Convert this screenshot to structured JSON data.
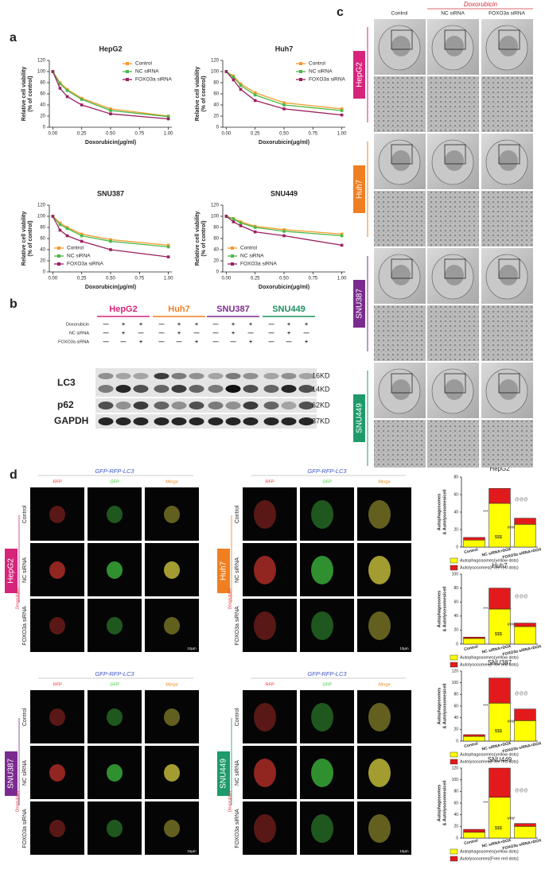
{
  "panel_labels": [
    "a",
    "b",
    "c",
    "d"
  ],
  "chart_data": [
    {
      "type": "line",
      "title": "HepG2",
      "x": [
        0,
        0.0625,
        0.125,
        0.25,
        0.5,
        1
      ],
      "xlabel": "Doxorubicin(μg/ml)",
      "ylabel": [
        "Relative cell viability",
        "(% of control)"
      ],
      "xlim": [
        -0.03,
        1.03
      ],
      "ylim": [
        0,
        120
      ],
      "xticks": [
        {
          "value": 0,
          "label": "0.00"
        },
        {
          "value": 0.25,
          "label": "0.25"
        },
        {
          "value": 0.5,
          "label": "0.50"
        },
        {
          "value": 0.75,
          "label": "0.75"
        },
        {
          "value": 1,
          "label": "1.00"
        }
      ],
      "yticks": [
        0,
        20,
        40,
        60,
        80,
        100,
        120
      ],
      "legend": "upper right",
      "series": [
        {
          "name": "Control",
          "color": "#f39c2b",
          "values": [
            100,
            80,
            68,
            52,
            33,
            20
          ]
        },
        {
          "name": "NC siRNA",
          "color": "#4cb848",
          "values": [
            100,
            78,
            66,
            50,
            30,
            19
          ]
        },
        {
          "name": "FOXO3a siRNA",
          "color": "#9b1f5f",
          "values": [
            100,
            70,
            55,
            40,
            24,
            15
          ]
        }
      ]
    },
    {
      "type": "line",
      "title": "Huh7",
      "x": [
        0,
        0.0625,
        0.125,
        0.25,
        0.5,
        1
      ],
      "xlabel": "Doxorubicin(μg/ml)",
      "ylabel": [
        "Relative cell viability",
        "(% of control)"
      ],
      "xlim": [
        -0.03,
        1.03
      ],
      "ylim": [
        0,
        120
      ],
      "xticks": [
        {
          "value": 0,
          "label": "0.00"
        },
        {
          "value": 0.25,
          "label": "0.25"
        },
        {
          "value": 0.5,
          "label": "0.50"
        },
        {
          "value": 0.75,
          "label": "0.75"
        },
        {
          "value": 1,
          "label": "1.00"
        }
      ],
      "yticks": [
        0,
        20,
        40,
        60,
        80,
        100,
        120
      ],
      "legend": "upper right",
      "series": [
        {
          "name": "Control",
          "color": "#f39c2b",
          "values": [
            100,
            92,
            78,
            62,
            44,
            33
          ]
        },
        {
          "name": "NC siRNA",
          "color": "#4cb848",
          "values": [
            100,
            90,
            75,
            58,
            40,
            30
          ]
        },
        {
          "name": "FOXO3a siRNA",
          "color": "#9b1f5f",
          "values": [
            100,
            85,
            68,
            48,
            33,
            22
          ]
        }
      ]
    },
    {
      "type": "line",
      "title": "SNU387",
      "x": [
        0,
        0.0625,
        0.125,
        0.25,
        0.5,
        1
      ],
      "xlabel": "Doxorubicin(μg/ml)",
      "ylabel": [
        "Relative cell viability",
        "(% of control)"
      ],
      "xlim": [
        -0.03,
        1.03
      ],
      "ylim": [
        0,
        120
      ],
      "xticks": [
        {
          "value": 0,
          "label": "0.00"
        },
        {
          "value": 0.25,
          "label": "0.25"
        },
        {
          "value": 0.5,
          "label": "0.50"
        },
        {
          "value": 0.75,
          "label": "0.75"
        },
        {
          "value": 1,
          "label": "1.00"
        }
      ],
      "yticks": [
        0,
        20,
        40,
        60,
        80,
        100,
        120
      ],
      "legend": "lower left",
      "series": [
        {
          "name": "Control",
          "color": "#f39c2b",
          "values": [
            100,
            88,
            80,
            68,
            58,
            48
          ]
        },
        {
          "name": "NC siRNA",
          "color": "#4cb848",
          "values": [
            100,
            85,
            78,
            65,
            55,
            45
          ]
        },
        {
          "name": "FOXO3a siRNA",
          "color": "#9b1f5f",
          "values": [
            100,
            75,
            65,
            55,
            40,
            27
          ]
        }
      ]
    },
    {
      "type": "line",
      "title": "SNU449",
      "x": [
        0,
        0.0625,
        0.125,
        0.25,
        0.5,
        1
      ],
      "xlabel": "Doxorubicin(μg/ml)",
      "ylabel": [
        "Relative cell viability",
        "(% of control)"
      ],
      "xlim": [
        -0.03,
        1.03
      ],
      "ylim": [
        0,
        120
      ],
      "xticks": [
        {
          "value": 0,
          "label": "0.00"
        },
        {
          "value": 0.25,
          "label": "0.25"
        },
        {
          "value": 0.5,
          "label": "0.50"
        },
        {
          "value": 0.75,
          "label": "0.75"
        },
        {
          "value": 1,
          "label": "1.00"
        }
      ],
      "yticks": [
        0,
        20,
        40,
        60,
        80,
        100,
        120
      ],
      "legend": "lower left",
      "series": [
        {
          "name": "Control",
          "color": "#f39c2b",
          "values": [
            100,
            96,
            90,
            82,
            76,
            68
          ]
        },
        {
          "name": "NC siRNA",
          "color": "#4cb848",
          "values": [
            100,
            95,
            88,
            80,
            73,
            65
          ]
        },
        {
          "name": "FOXO3a siRNA",
          "color": "#9b1f5f",
          "values": [
            100,
            90,
            83,
            72,
            65,
            48
          ]
        }
      ]
    },
    {
      "type": "bar",
      "stacked": true,
      "title": "HepG2",
      "categories": [
        "Control",
        "NC siRNA+DOX",
        "FOXO3a siRNA+DOX"
      ],
      "ylabel": [
        "Autophagosomes",
        "& Autolysosomes/cell"
      ],
      "ylim": [
        0,
        80
      ],
      "yticks": [
        0,
        20,
        40,
        60,
        80
      ],
      "annotations": [
        "***",
        "$$$",
        "@@@",
        "###"
      ],
      "series": [
        {
          "name": "Autophagosomes(yellow dots)",
          "color": "#ffff00",
          "values": [
            8,
            50,
            26
          ]
        },
        {
          "name": "Autolysosomes(Free red dots)",
          "color": "#e31a1c",
          "values": [
            3,
            17,
            7
          ]
        }
      ]
    },
    {
      "type": "bar",
      "stacked": true,
      "title": "Huh7",
      "categories": [
        "Control",
        "NC siRNA+DOX",
        "FOXO3a siRNA+DOX"
      ],
      "ylabel": [
        "Autophagosomes",
        "& Autolysosomes/cell"
      ],
      "ylim": [
        0,
        100
      ],
      "yticks": [
        0,
        20,
        40,
        60,
        80,
        100
      ],
      "annotations": [
        "***",
        "$$$",
        "@@@",
        "###"
      ],
      "series": [
        {
          "name": "Autophagosomes(yellow dots)",
          "color": "#ffff00",
          "values": [
            8,
            50,
            25
          ]
        },
        {
          "name": "Autolysosomes(Free red dots)",
          "color": "#e31a1c",
          "values": [
            2,
            30,
            5
          ]
        }
      ]
    },
    {
      "type": "bar",
      "stacked": true,
      "title": "SNU387",
      "categories": [
        "Control",
        "NC siRNA+DOX",
        "FOXO3a siRNA+DOX"
      ],
      "ylabel": [
        "Autophagosomes",
        "& Autolysosomes/cell"
      ],
      "ylim": [
        0,
        120
      ],
      "yticks": [
        0,
        20,
        40,
        60,
        80,
        100,
        120
      ],
      "annotations": [
        "***",
        "$$$",
        "@@@",
        "###"
      ],
      "series": [
        {
          "name": "Autophagosomes(yellow dots)",
          "color": "#ffff00",
          "values": [
            8,
            65,
            35
          ]
        },
        {
          "name": "Autolysosomes(Free red dots)",
          "color": "#e31a1c",
          "values": [
            3,
            43,
            20
          ]
        }
      ]
    },
    {
      "type": "bar",
      "stacked": true,
      "title": "SNU449",
      "categories": [
        "Control",
        "NC siRNA+DOX",
        "FOXO3a siRNA+DOX"
      ],
      "ylabel": [
        "Autophagosomes",
        "& Autolysosomes/cell"
      ],
      "ylim": [
        0,
        120
      ],
      "yticks": [
        0,
        20,
        40,
        60,
        80,
        100,
        120
      ],
      "annotations": [
        "***",
        "$$$",
        "@@@",
        "###"
      ],
      "series": [
        {
          "name": "Autophagosomes(yellow dots)",
          "color": "#ffff00",
          "values": [
            10,
            70,
            20
          ]
        },
        {
          "name": "Autolysosomes(Free red dots)",
          "color": "#e31a1c",
          "values": [
            5,
            50,
            5
          ]
        }
      ]
    }
  ],
  "blot": {
    "groups": [
      {
        "name": "HepG2",
        "color": "#d6247a"
      },
      {
        "name": "Huh7",
        "color": "#f07f22"
      },
      {
        "name": "SNU387",
        "color": "#7b2b8f"
      },
      {
        "name": "SNU449",
        "color": "#1f8f5f"
      }
    ],
    "conditions": [
      {
        "name": "Doxorubicin",
        "signs": [
          "—",
          "+",
          "+"
        ]
      },
      {
        "name": "NC siRNA",
        "signs": [
          "—",
          "+",
          "—"
        ]
      },
      {
        "name": "FOXO3a siRNA",
        "signs": [
          "—",
          "—",
          "+"
        ]
      }
    ],
    "proteins": [
      "LC3",
      "p62",
      "GAPDH"
    ],
    "sizes": [
      "16KD",
      "14KD",
      "62KD",
      "37KD"
    ]
  },
  "tem": {
    "treatment": "Doxorubicin",
    "columns": [
      "Control",
      "NC siRNA",
      "FOXO3a siRNA"
    ],
    "cell_lines": [
      {
        "name": "HepG2",
        "color": "#d6247a"
      },
      {
        "name": "Huh7",
        "color": "#f07f22"
      },
      {
        "name": "SNU387",
        "color": "#7b2b8f"
      },
      {
        "name": "SNU449",
        "color": "#1f9b6b"
      }
    ]
  },
  "fluorescence": {
    "title": "GFP-RFP-LC3",
    "channels": [
      "RFP",
      "GFP",
      "Merge"
    ],
    "conditions": [
      "Control",
      "NC siRNA",
      "FOXO3a siRNA"
    ],
    "treatment": "Doxorubicin",
    "blocks": [
      {
        "cell_line": "HepG2",
        "color": "#d6247a",
        "scale": "10μm"
      },
      {
        "cell_line": "Huh7",
        "color": "#f07f22",
        "scale": "10μm"
      },
      {
        "cell_line": "SNU387",
        "color": "#7b2b8f",
        "scale": "15μm"
      },
      {
        "cell_line": "SNU449",
        "color": "#1f9b6b",
        "scale": "10μm"
      }
    ]
  }
}
